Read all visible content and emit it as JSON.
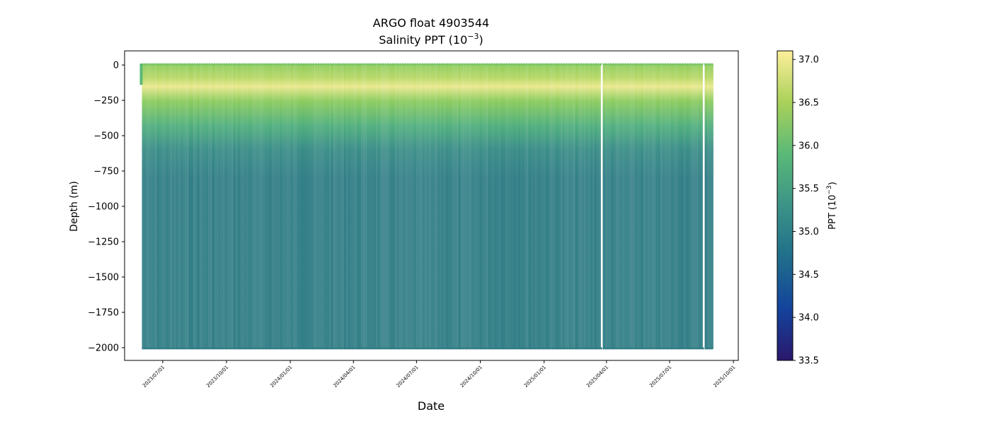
{
  "chart_data": {
    "type": "heatmap",
    "title": "ARGO float 4903544",
    "subtitle_text": "Salinity PPT (10",
    "subtitle_exp": "−3",
    "subtitle_end": ")",
    "xlabel": "Date",
    "ylabel": "Depth (m)",
    "x_range": [
      "2023-05-07",
      "2025-10-08"
    ],
    "x_ticks": [
      "2023/07/01",
      "2023/10/01",
      "2024/01/01",
      "2024/04/01",
      "2024/07/01",
      "2024/10/01",
      "2025/01/01",
      "2025/04/01",
      "2025/07/01",
      "2025/10/01"
    ],
    "x_tick_dates": [
      "2023-07-01",
      "2023-10-01",
      "2024-01-01",
      "2024-04-01",
      "2024-07-01",
      "2024-10-01",
      "2025-01-01",
      "2025-04-01",
      "2025-07-01",
      "2025-10-01"
    ],
    "ylim": [
      -2090,
      100
    ],
    "y_ticks": [
      0,
      -250,
      -500,
      -750,
      -1000,
      -1250,
      -1500,
      -1750,
      -2000
    ],
    "y_tick_labels": [
      "0",
      "−250",
      "−500",
      "−750",
      "−1000",
      "−1250",
      "−1500",
      "−1750",
      "−2000"
    ],
    "profile_start": "2023-06-01",
    "profile_end": "2025-09-01",
    "max_depth": -2000,
    "gaps": [
      [
        "2025-03-22",
        "2025-03-26"
      ],
      [
        "2025-08-16",
        "2025-08-20"
      ]
    ],
    "colorbar": {
      "label_text": "PPT (10",
      "label_exp": "−3",
      "label_end": ")",
      "min": 33.5,
      "max": 37.1,
      "ticks": [
        37.0,
        36.5,
        36.0,
        35.5,
        35.0,
        34.5,
        34.0,
        33.5
      ],
      "tick_labels": [
        "37.0",
        "36.5",
        "36.0",
        "35.5",
        "35.0",
        "34.5",
        "34.0",
        "33.5"
      ],
      "colormap": "haline",
      "colors": [
        "#2a186c",
        "#14439c",
        "#206e8b",
        "#3c9387",
        "#5ab978",
        "#a9d15a",
        "#fdef9a"
      ]
    },
    "deep_salinity": 35.0,
    "surface_salinity": 36.1,
    "subsurface_max_salinity": 36.9,
    "subsurface_max_depth": -180
  }
}
